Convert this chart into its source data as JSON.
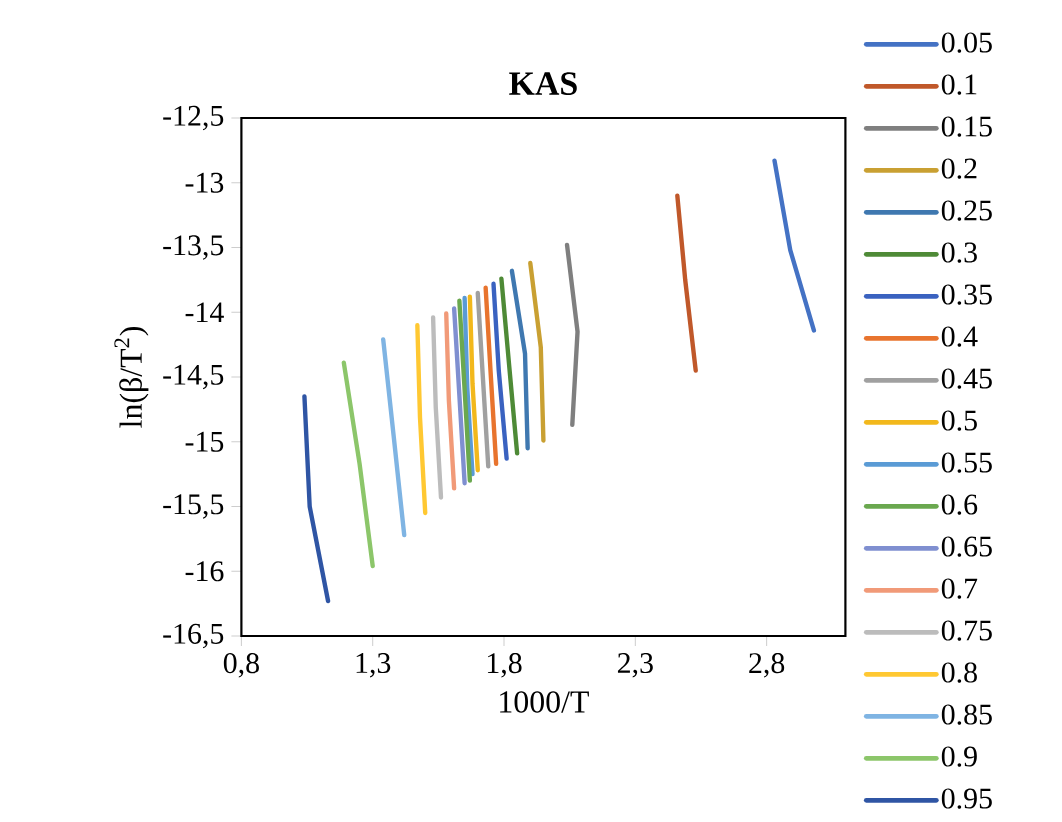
{
  "chart_data": {
    "type": "line",
    "title": "KAS",
    "xlabel": "1000/T",
    "ylabel": "ln(β/T$^{2}$)",
    "xlim": [
      0.8,
      3.1
    ],
    "ylim": [
      -16.5,
      -12.5
    ],
    "xticks": [
      {
        "value": 0.8,
        "label": "0,8"
      },
      {
        "value": 1.3,
        "label": "1,3"
      },
      {
        "value": 1.8,
        "label": "1,8"
      },
      {
        "value": 2.3,
        "label": "2,3"
      },
      {
        "value": 2.8,
        "label": "2,8"
      }
    ],
    "yticks": [
      {
        "value": -12.5,
        "label": "-12,5"
      },
      {
        "value": -13,
        "label": "-13"
      },
      {
        "value": -13.5,
        "label": "-13,5"
      },
      {
        "value": -14,
        "label": "-14"
      },
      {
        "value": -14.5,
        "label": "-14,5"
      },
      {
        "value": -15,
        "label": "-15"
      },
      {
        "value": -15.5,
        "label": "-15,5"
      },
      {
        "value": -16,
        "label": "-16"
      },
      {
        "value": -16.5,
        "label": "-16,5"
      }
    ],
    "grid": false,
    "legend": "right",
    "marker": "none",
    "line_style": "solid",
    "series": [
      {
        "name": "0.05",
        "color": "#4472c4",
        "x": [
          2.83,
          2.89,
          2.98
        ],
        "values": [
          -12.83,
          -13.52,
          -14.14
        ]
      },
      {
        "name": "0.1",
        "color": "#c0582a",
        "x": [
          2.46,
          2.49,
          2.53
        ],
        "values": [
          -13.1,
          -13.75,
          -14.45
        ]
      },
      {
        "name": "0.15",
        "color": "#7f7f7f",
        "x": [
          2.04,
          2.08,
          2.06
        ],
        "values": [
          -13.48,
          -14.15,
          -14.87
        ]
      },
      {
        "name": "0.2",
        "color": "#c9a032",
        "x": [
          1.9,
          1.94,
          1.95
        ],
        "values": [
          -13.62,
          -14.27,
          -14.99
        ]
      },
      {
        "name": "0.25",
        "color": "#3f78b0",
        "x": [
          1.83,
          1.88,
          1.89
        ],
        "values": [
          -13.68,
          -14.32,
          -15.05
        ]
      },
      {
        "name": "0.3",
        "color": "#4e8a36",
        "x": [
          1.79,
          1.82,
          1.85
        ],
        "values": [
          -13.74,
          -14.42,
          -15.09
        ]
      },
      {
        "name": "0.35",
        "color": "#3a62c0",
        "x": [
          1.76,
          1.78,
          1.81
        ],
        "values": [
          -13.78,
          -14.45,
          -15.13
        ]
      },
      {
        "name": "0.4",
        "color": "#e8742e",
        "x": [
          1.73,
          1.75,
          1.77
        ],
        "values": [
          -13.81,
          -14.5,
          -15.17
        ]
      },
      {
        "name": "0.45",
        "color": "#a0a0a0",
        "x": [
          1.7,
          1.72,
          1.74
        ],
        "values": [
          -13.85,
          -14.52,
          -15.19
        ]
      },
      {
        "name": "0.5",
        "color": "#f2b81c",
        "x": [
          1.67,
          1.68,
          1.7
        ],
        "values": [
          -13.88,
          -14.55,
          -15.22
        ]
      },
      {
        "name": "0.55",
        "color": "#5a9bd5",
        "x": [
          1.65,
          1.66,
          1.68
        ],
        "values": [
          -13.89,
          -14.58,
          -15.25
        ]
      },
      {
        "name": "0.6",
        "color": "#6aa84f",
        "x": [
          1.63,
          1.65,
          1.67
        ],
        "values": [
          -13.91,
          -14.6,
          -15.3
        ]
      },
      {
        "name": "0.65",
        "color": "#7f8fd0",
        "x": [
          1.61,
          1.63,
          1.65
        ],
        "values": [
          -13.97,
          -14.64,
          -15.32
        ]
      },
      {
        "name": "0.7",
        "color": "#f19a78",
        "x": [
          1.58,
          1.59,
          1.61
        ],
        "values": [
          -14.01,
          -14.68,
          -15.36
        ]
      },
      {
        "name": "0.75",
        "color": "#bcbcbc",
        "x": [
          1.53,
          1.54,
          1.56
        ],
        "values": [
          -14.04,
          -14.73,
          -15.43
        ]
      },
      {
        "name": "0.8",
        "color": "#ffc832",
        "x": [
          1.47,
          1.48,
          1.5
        ],
        "values": [
          -14.1,
          -14.81,
          -15.55
        ]
      },
      {
        "name": "0.85",
        "color": "#7fb4e3",
        "x": [
          1.34,
          1.38,
          1.42
        ],
        "values": [
          -14.21,
          -14.96,
          -15.72
        ]
      },
      {
        "name": "0.9",
        "color": "#8cc66a",
        "x": [
          1.19,
          1.25,
          1.3
        ],
        "values": [
          -14.39,
          -15.17,
          -15.96
        ]
      },
      {
        "name": "0.95",
        "color": "#2f55a4",
        "x": [
          1.04,
          1.06,
          1.13
        ],
        "values": [
          -14.65,
          -15.5,
          -16.23
        ]
      }
    ]
  }
}
